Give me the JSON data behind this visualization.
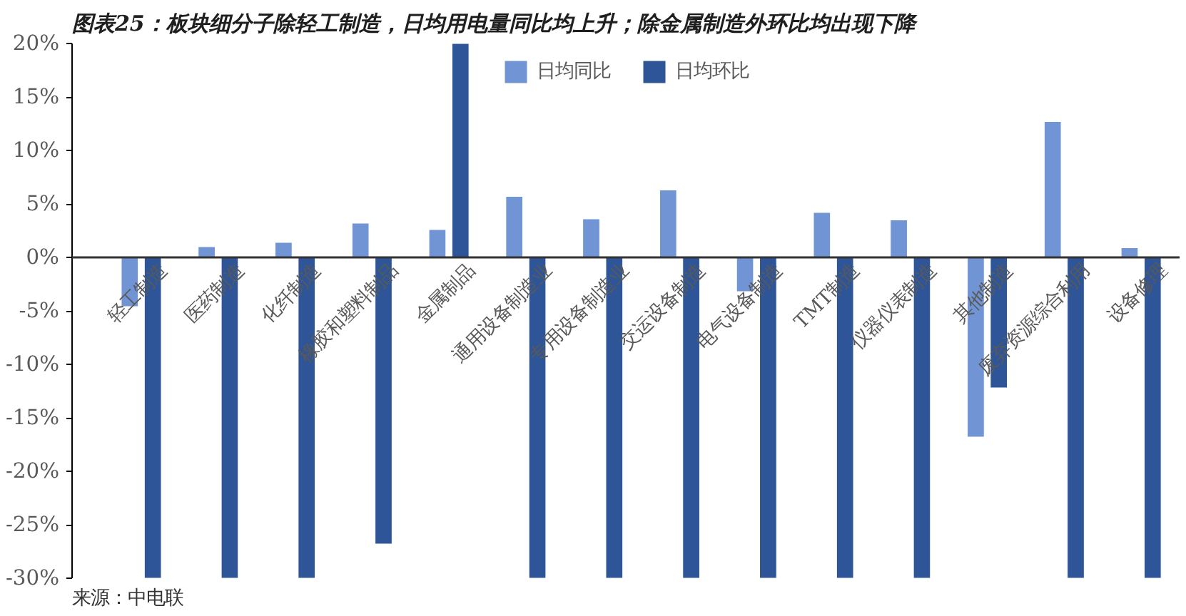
{
  "chart_data": {
    "type": "bar",
    "title": "图表25：板块细分子除轻工制造，日均用电量同比均上升；除金属制造外环比均出现下降",
    "categories": [
      "轻工制造",
      "医药制造",
      "化纤制造",
      "橡胶和塑料制品",
      "金属制品",
      "通用设备制造业",
      "专用设备制造业",
      "交运设备制造",
      "电气设备制造",
      "TMT制造",
      "仪器仪表制造",
      "其他制造",
      "废弃资源综合利用",
      "设备修理"
    ],
    "series": [
      {
        "name": "日均同比",
        "color": "#7094d4",
        "values": [
          -4.6,
          1.0,
          1.4,
          3.2,
          2.6,
          5.7,
          3.6,
          6.3,
          -3.2,
          4.2,
          3.5,
          -16.8,
          12.7,
          0.9
        ]
      },
      {
        "name": "日均环比",
        "color": "#2e5597",
        "values": [
          -30,
          -30,
          -30,
          -26.8,
          20,
          -30,
          -30,
          -30,
          -30,
          -30,
          -30,
          -12.2,
          -30,
          -30
        ]
      }
    ],
    "ylim": [
      -30,
      20
    ],
    "yticks": [
      {
        "value": 20,
        "label": "20%"
      },
      {
        "value": 15,
        "label": "15%"
      },
      {
        "value": 10,
        "label": "10%"
      },
      {
        "value": 5,
        "label": "5%"
      },
      {
        "value": 0,
        "label": "0%"
      },
      {
        "value": -5,
        "label": "-5%"
      },
      {
        "value": -10,
        "label": "-10%"
      },
      {
        "value": -15,
        "label": "-15%"
      },
      {
        "value": -20,
        "label": "-20%"
      },
      {
        "value": -25,
        "label": "-25%"
      },
      {
        "value": -30,
        "label": "-30%"
      }
    ],
    "grid": false,
    "legend": "top",
    "annotations": [
      "来源：中电联"
    ]
  }
}
